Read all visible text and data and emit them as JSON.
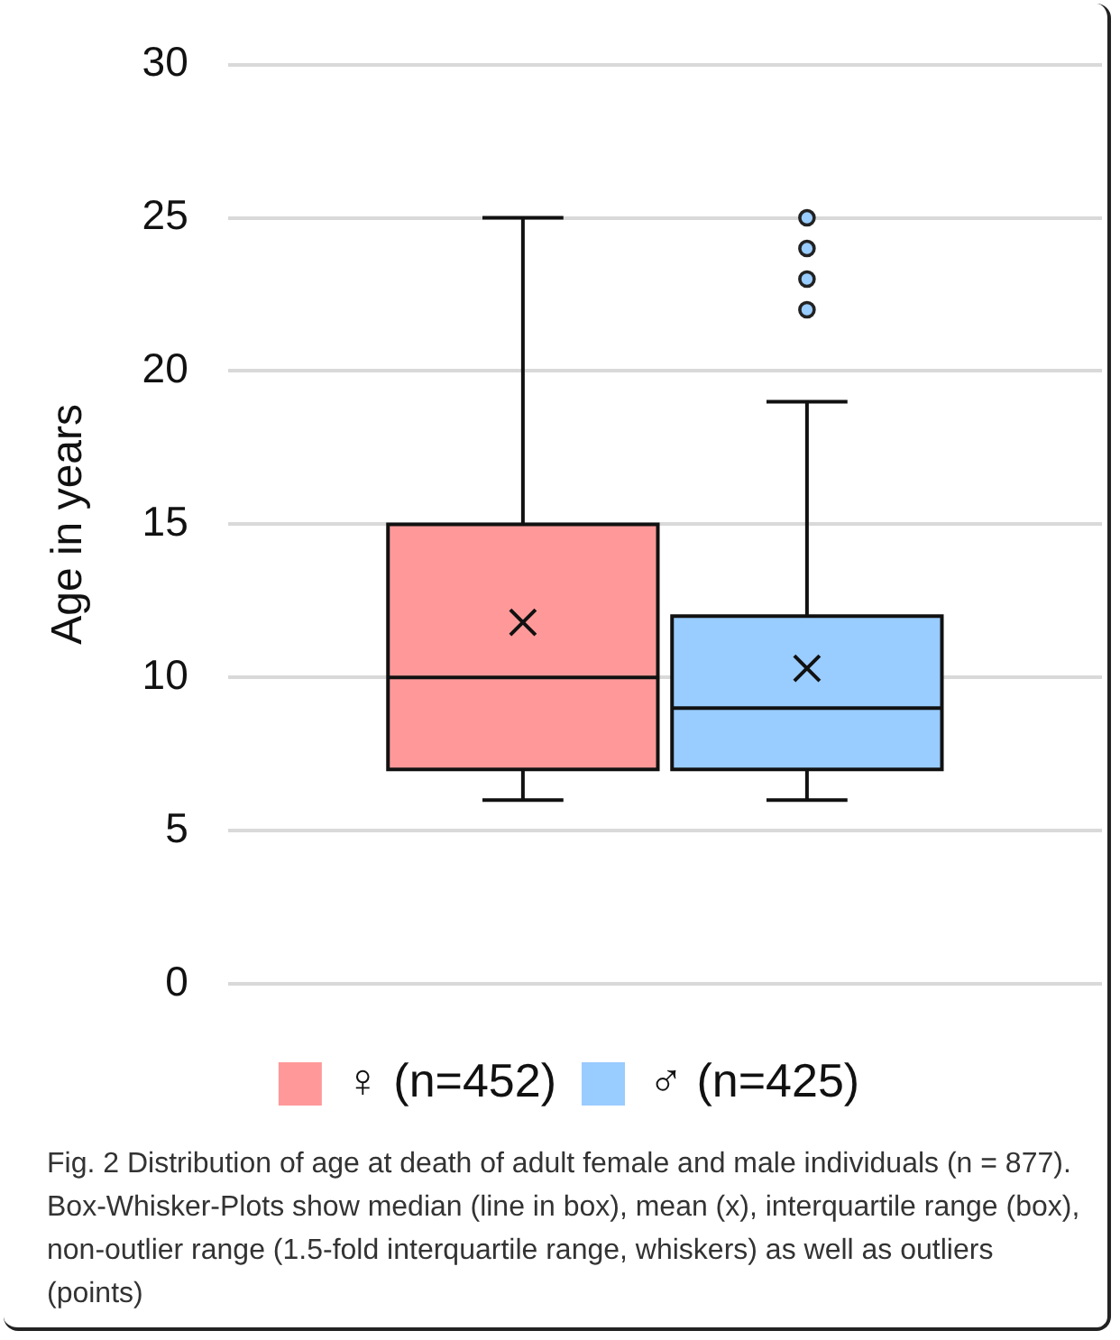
{
  "chart_data": {
    "type": "box",
    "categories": [
      null
    ],
    "ylabel": "Age in years",
    "ylim": [
      0,
      30
    ],
    "yticks": [
      0,
      5,
      10,
      15,
      20,
      25,
      30
    ],
    "grid": "y",
    "legend": "bottom",
    "series": [
      {
        "name": "♀ (n=452)",
        "color": "#ff9999",
        "boxes": [
          {
            "low": 6,
            "q1": 7,
            "median": 10,
            "q3": 15,
            "high": 25,
            "mean": 11.8
          }
        ]
      },
      {
        "name": "♂ (n=425)",
        "color": "#99ccff",
        "boxes": [
          {
            "low": 6,
            "q1": 7,
            "median": 9,
            "q3": 12,
            "high": 19,
            "mean": 10.3,
            "outliers": [
              22,
              23,
              24,
              25
            ]
          }
        ]
      }
    ],
    "annotations": [
      "Fig. 2 Distribution of age at death of adult female and male individuals (n = 877). Box-Whisker-Plots show median (line in box), mean (x), interquartile range (box), non-outlier range (1.5-fold interquartile range, whiskers) as well as outliers (points)"
    ]
  }
}
